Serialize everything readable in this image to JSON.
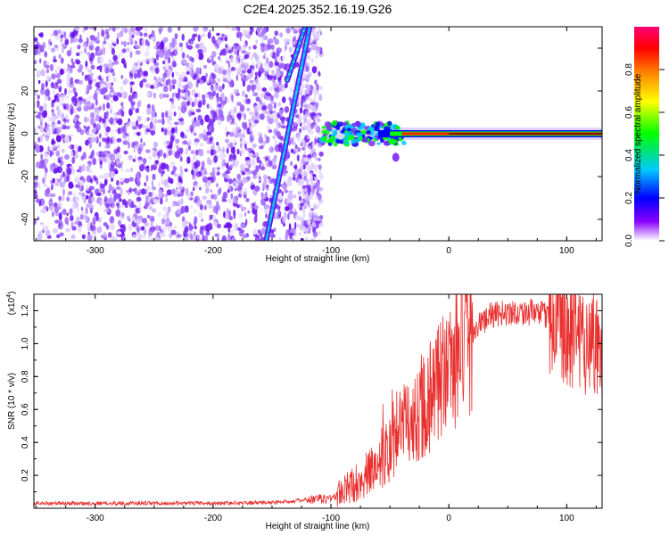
{
  "title": "C2E4.2025.352.16.19.G26",
  "chart_data": [
    {
      "type": "heatmap",
      "name": "spectrogram",
      "xlabel": "Height of straight line (km)",
      "ylabel": "Frequency (Hz)",
      "xlim": [
        -352,
        130
      ],
      "ylim": [
        -50,
        50
      ],
      "xticks": [
        -300,
        -200,
        -100,
        0,
        100
      ],
      "yticks": [
        -40,
        -20,
        0,
        20,
        40
      ],
      "colorbar": {
        "label": "Normalized spectral amplitude",
        "range": [
          0,
          1
        ],
        "ticks": [
          0.0,
          0.2,
          0.4,
          0.6,
          0.8
        ],
        "tick_labels": [
          "0.0",
          "0.2",
          "0.4",
          "0.6",
          "0.8"
        ],
        "colors": [
          "#ffffff",
          "#8800ff",
          "#0000ff",
          "#00c8ff",
          "#00ff00",
          "#ffff00",
          "#ff8800",
          "#ff0000",
          "#ff0077"
        ]
      },
      "features": {
        "noise_region_x": [
          -352,
          -108
        ],
        "drift_line_1": {
          "x": [
            -155,
            -118
          ],
          "freq": [
            -50,
            50
          ]
        },
        "drift_line_2": {
          "x": [
            -137,
            -122
          ],
          "freq": [
            25,
            50
          ]
        },
        "carrier_freq": 0,
        "carrier_start_x": -108
      }
    },
    {
      "type": "line",
      "name": "snr",
      "xlabel": "Height of straight line (km)",
      "ylabel": "SNR (10 * v/v)",
      "scale_label": "(x10",
      "scale_exponent": "4",
      "xlim": [
        -352,
        130
      ],
      "ylim": [
        0,
        1.3
      ],
      "xticks": [
        -300,
        -200,
        -100,
        0,
        100
      ],
      "yticks": [
        0.2,
        0.4,
        0.6,
        0.8,
        1.0,
        1.2
      ],
      "ytick_labels": [
        "0.2",
        "0.4",
        "0.6",
        "0.8",
        "1.0",
        "1.2"
      ],
      "color": "#e8312f",
      "envelope": [
        {
          "x": -352,
          "v": 0.03
        },
        {
          "x": -200,
          "v": 0.03
        },
        {
          "x": -150,
          "v": 0.035
        },
        {
          "x": -120,
          "v": 0.05
        },
        {
          "x": -100,
          "v": 0.06
        },
        {
          "x": -90,
          "v": 0.1
        },
        {
          "x": -70,
          "v": 0.2
        },
        {
          "x": -55,
          "v": 0.3
        },
        {
          "x": -45,
          "v": 0.45
        },
        {
          "x": -35,
          "v": 0.5
        },
        {
          "x": -20,
          "v": 0.65
        },
        {
          "x": -5,
          "v": 0.8
        },
        {
          "x": 10,
          "v": 0.95
        },
        {
          "x": 20,
          "v": 1.08
        },
        {
          "x": 35,
          "v": 1.17
        },
        {
          "x": 50,
          "v": 1.19
        },
        {
          "x": 70,
          "v": 1.19
        },
        {
          "x": 85,
          "v": 1.17
        },
        {
          "x": 100,
          "v": 1.1
        },
        {
          "x": 115,
          "v": 1.04
        },
        {
          "x": 130,
          "v": 0.98
        }
      ]
    }
  ]
}
